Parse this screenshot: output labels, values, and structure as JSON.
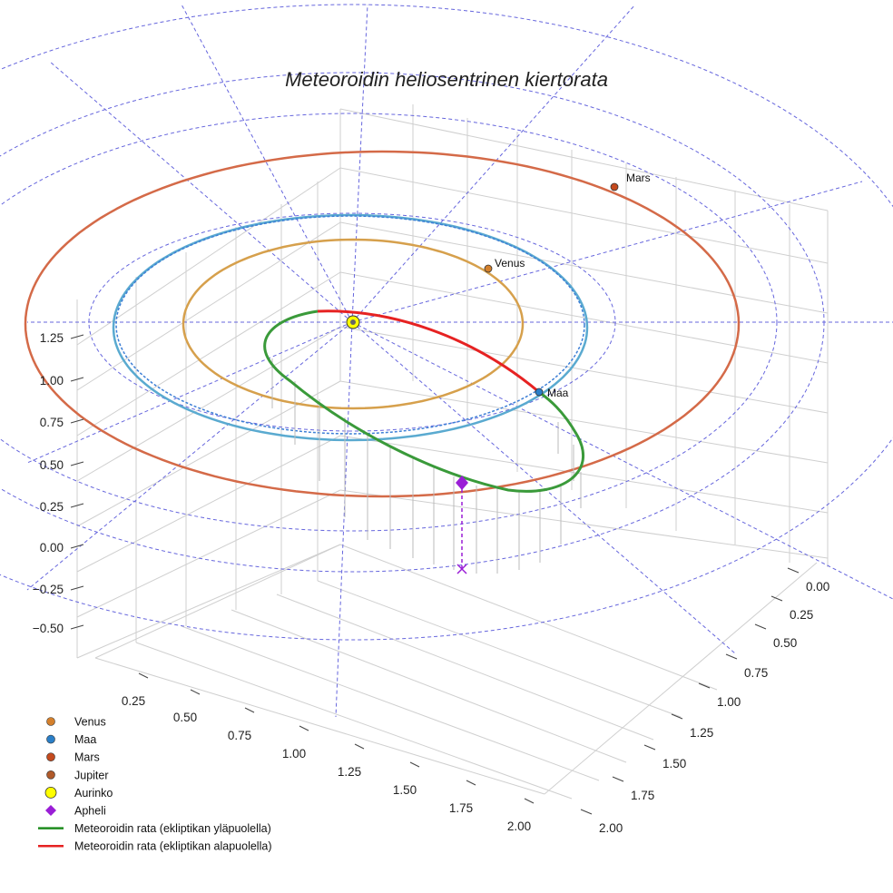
{
  "chart_data": {
    "type": "3d-orbit",
    "title": "Meteoroidin heliosentrinen kiertorata",
    "x_ticks": [
      "0.25",
      "0.50",
      "0.75",
      "1.00",
      "1.25",
      "1.50",
      "1.75",
      "2.00"
    ],
    "y_ticks": [
      "0.00",
      "0.25",
      "0.50",
      "0.75",
      "1.00",
      "1.25",
      "1.50",
      "1.75",
      "2.00"
    ],
    "z_ticks": [
      "1.25",
      "1.00",
      "0.75",
      "0.50",
      "0.25",
      "0.00",
      "−0.25",
      "−0.50"
    ],
    "planet_labels": {
      "venus": "Venus",
      "earth": "Maa",
      "mars": "Mars"
    },
    "colors": {
      "venus": "#d6a04c",
      "earth": "#3d7fd6",
      "earth_light": "#5aaad0",
      "mars": "#d46a48",
      "venus_marker": "#d4802c",
      "earth_marker": "#2a7fc8",
      "mars_marker": "#c44a1e",
      "jupiter_marker": "#b05a2a",
      "sun": "#ffff00",
      "aphelion": "#9a1ed6",
      "meteoroid_above": "#3a9a3a",
      "meteoroid_below": "#e62222",
      "grid_dashed": "#6666dd"
    },
    "legend": [
      {
        "label": "Venus",
        "marker": "dot",
        "color": "#d4802c"
      },
      {
        "label": "Maa",
        "marker": "dot",
        "color": "#2a7fc8"
      },
      {
        "label": "Mars",
        "marker": "dot",
        "color": "#c44a1e"
      },
      {
        "label": "Jupiter",
        "marker": "dot",
        "color": "#b05a2a"
      },
      {
        "label": "Aurinko",
        "marker": "sun",
        "color": "#ffff00"
      },
      {
        "label": "Apheli",
        "marker": "diamond",
        "color": "#9a1ed6"
      },
      {
        "label": "Meteoroidin rata (ekliptikan yläpuolella)",
        "marker": "line",
        "color": "#1e8c1e"
      },
      {
        "label": "Meteoroidin rata (ekliptikan alapuolella)",
        "marker": "line",
        "color": "#e62222"
      }
    ]
  }
}
